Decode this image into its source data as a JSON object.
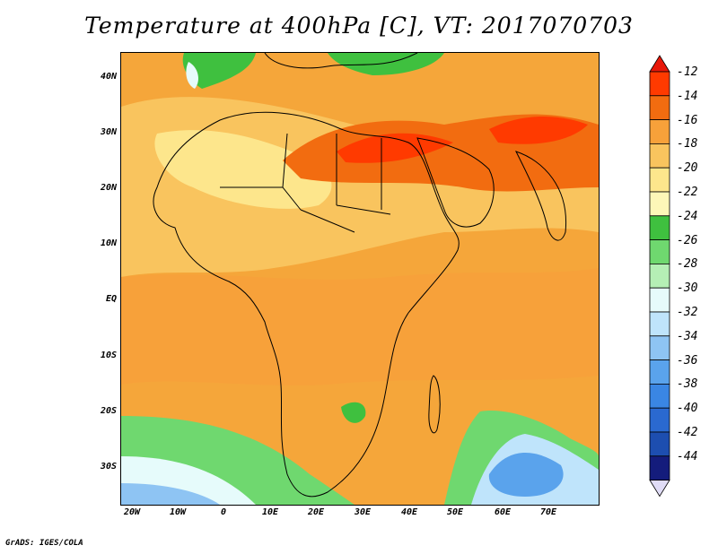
{
  "title": "Temperature at 400hPa [C], VT: 2017070703",
  "footer": "GrADS: IGES/COLA",
  "map": {
    "lat_labels": [
      "40N",
      "30N",
      "20N",
      "10N",
      "EQ",
      "10S",
      "20S",
      "30S"
    ],
    "lon_labels": [
      "20W",
      "10W",
      "0",
      "10E",
      "20E",
      "30E",
      "40E",
      "50E",
      "60E",
      "70E"
    ],
    "field": "Temperature",
    "level": "400hPa",
    "units": "C",
    "valid_time": "2017070703"
  },
  "colorbar": {
    "levels": [
      {
        "label": "-12",
        "color": "#ff3a00"
      },
      {
        "label": "-14",
        "color": "#f26c10"
      },
      {
        "label": "-16",
        "color": "#f7a13a"
      },
      {
        "label": "-18",
        "color": "#f9c45e"
      },
      {
        "label": "-20",
        "color": "#fde68c"
      },
      {
        "label": "-22",
        "color": "#fdf7b8"
      },
      {
        "label": "-24",
        "color": "#3fc03f"
      },
      {
        "label": "-26",
        "color": "#6fd86f"
      },
      {
        "label": "-28",
        "color": "#b5efb5"
      },
      {
        "label": "-30",
        "color": "#e6fbfb"
      },
      {
        "label": "-32",
        "color": "#bfe4fb"
      },
      {
        "label": "-34",
        "color": "#8ec4f3"
      },
      {
        "label": "-36",
        "color": "#5aa3ec"
      },
      {
        "label": "-38",
        "color": "#3a86e3"
      },
      {
        "label": "-40",
        "color": "#2a69d0"
      },
      {
        "label": "-42",
        "color": "#1d4eb0"
      },
      {
        "label": "-44",
        "color": "#141c7c"
      }
    ],
    "top_cap_color": "#e8180a",
    "bottom_cap_color": "#e0dcf6"
  }
}
